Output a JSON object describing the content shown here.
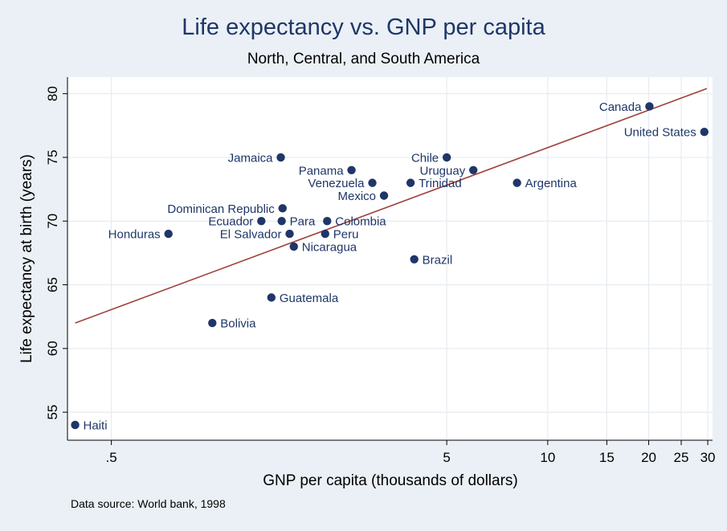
{
  "chart_data": {
    "type": "scatter",
    "title": "Life expectancy vs. GNP per capita",
    "subtitle": "North, Central, and South America",
    "xlabel": "GNP per capita (thousands of dollars)",
    "ylabel": "Life expectancy at birth (years)",
    "note": "Data source:  World bank, 1998",
    "x_scale": "log",
    "xlim": [
      0.37,
      31
    ],
    "ylim": [
      52.8,
      81.3
    ],
    "x_ticks": [
      {
        "value": 0.5,
        "label": ".5"
      },
      {
        "value": 5,
        "label": "5"
      },
      {
        "value": 10,
        "label": "10"
      },
      {
        "value": 15,
        "label": "15"
      },
      {
        "value": 20,
        "label": "20"
      },
      {
        "value": 25,
        "label": "25"
      },
      {
        "value": 30,
        "label": "30"
      }
    ],
    "y_ticks": [
      55,
      60,
      65,
      70,
      75,
      80
    ],
    "grid": true,
    "colors": {
      "marker": "#1f3668",
      "fit_line": "#a0403c",
      "plot_bg": "#ffffff",
      "outer_bg": "#eaf0f5",
      "grid": "#e6ecf2"
    },
    "fit_line": {
      "x": [
        0.39,
        29.8
      ],
      "y": [
        62.0,
        80.4
      ]
    },
    "points": [
      {
        "label": "Haiti",
        "x": 0.39,
        "y": 54,
        "side": "right"
      },
      {
        "label": "Honduras",
        "x": 0.74,
        "y": 69,
        "side": "left"
      },
      {
        "label": "Bolivia",
        "x": 1.0,
        "y": 62,
        "side": "right"
      },
      {
        "label": "Guatemala",
        "x": 1.5,
        "y": 64,
        "side": "right"
      },
      {
        "label": "Jamaica",
        "x": 1.6,
        "y": 75,
        "side": "left"
      },
      {
        "label": "Dominican Republic",
        "x": 1.62,
        "y": 71,
        "side": "left"
      },
      {
        "label": "Ecuador",
        "x": 1.4,
        "y": 70,
        "side": "left"
      },
      {
        "label": "Para",
        "x": 1.61,
        "y": 70,
        "side": "right"
      },
      {
        "label": "El Salvador",
        "x": 1.7,
        "y": 69,
        "side": "left"
      },
      {
        "label": "Nicaragua",
        "x": 1.75,
        "y": 68,
        "side": "right"
      },
      {
        "label": "Colombia",
        "x": 2.2,
        "y": 70,
        "side": "right"
      },
      {
        "label": "Peru",
        "x": 2.17,
        "y": 69,
        "side": "right"
      },
      {
        "label": "Panama",
        "x": 2.6,
        "y": 74,
        "side": "left"
      },
      {
        "label": "Venezuela",
        "x": 3.0,
        "y": 73,
        "side": "left"
      },
      {
        "label": "Mexico",
        "x": 3.25,
        "y": 72,
        "side": "left"
      },
      {
        "label": "Chile",
        "x": 5.0,
        "y": 75,
        "side": "left"
      },
      {
        "label": "Uruguay",
        "x": 6.0,
        "y": 74,
        "side": "left"
      },
      {
        "label": "Trinidad",
        "x": 3.9,
        "y": 73,
        "side": "right"
      },
      {
        "label": "Brazil",
        "x": 4.0,
        "y": 67,
        "side": "right"
      },
      {
        "label": "Argentina",
        "x": 8.1,
        "y": 73,
        "side": "right"
      },
      {
        "label": "Canada",
        "x": 20.1,
        "y": 79,
        "side": "left"
      },
      {
        "label": "United States",
        "x": 29.3,
        "y": 77,
        "side": "left"
      }
    ]
  }
}
